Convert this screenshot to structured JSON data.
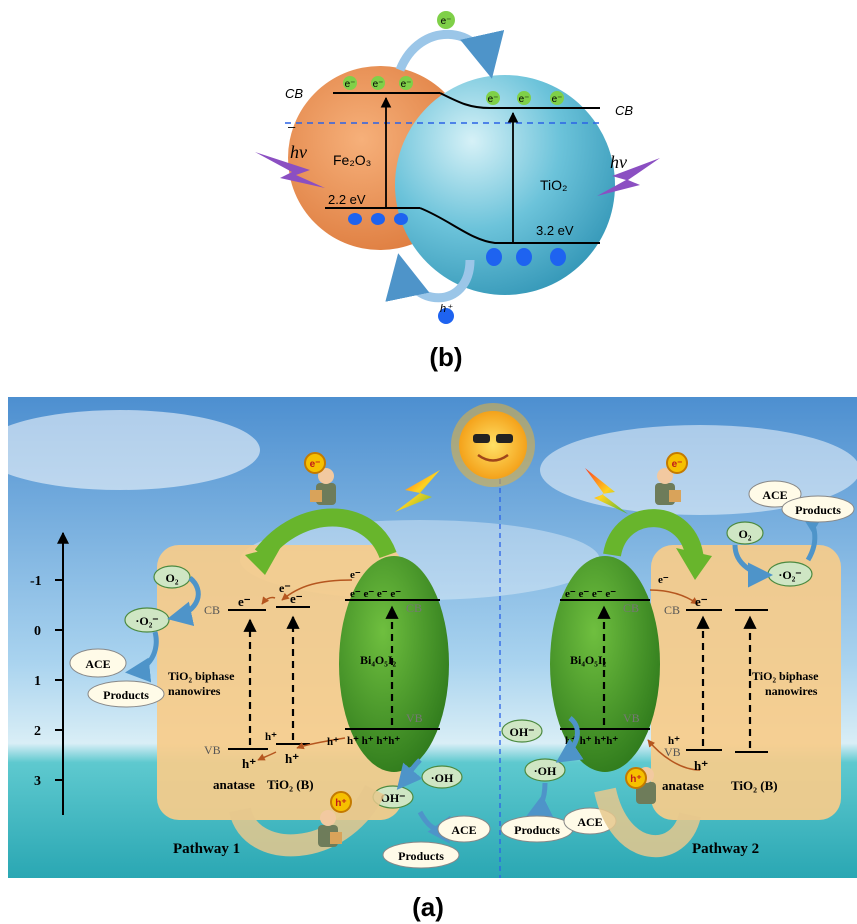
{
  "panel_b": {
    "label": "(b)",
    "cb_left": "CB",
    "cb_right": "CB",
    "minus": "–",
    "hv": "hv",
    "fe2o3": "Fe₂O₃",
    "tio2": "TiO₂",
    "gap_fe": "2.2 eV",
    "gap_ti": "3.2 eV",
    "electron": "e⁻",
    "hole": "h⁺",
    "colors": {
      "fe": "#e9915a",
      "ti": "#46a9c4",
      "electron": "#7fd048",
      "hole": "#1e63f0",
      "band_dash": "#2b63e6"
    }
  },
  "panel_a": {
    "label": "(a)",
    "axis_ticks": [
      "-1",
      "0",
      "1",
      "2",
      "3"
    ],
    "cb": "CB",
    "vb": "VB",
    "electron": "e⁻",
    "hole": "h⁺",
    "o2": "O₂",
    "o2_radical": "·O₂⁻",
    "oh_minus": "OH⁻",
    "oh_radical": "·OH",
    "ace": "ACE",
    "products": "Products",
    "tio2_biphase": "TiO₂ biphase",
    "nanowires": "nanowires",
    "bi4o5i2": "Bi₄O₅I₂",
    "anatase": "anatase",
    "tio2_b": "TiO₂ (B)",
    "pathway1": "Pathway 1",
    "pathway2": "Pathway 2",
    "colors": {
      "box": "#f7cc8a",
      "bi": "#4f9a2c",
      "sky": "#5f9fd6",
      "sea": "#3fbcc2"
    }
  }
}
